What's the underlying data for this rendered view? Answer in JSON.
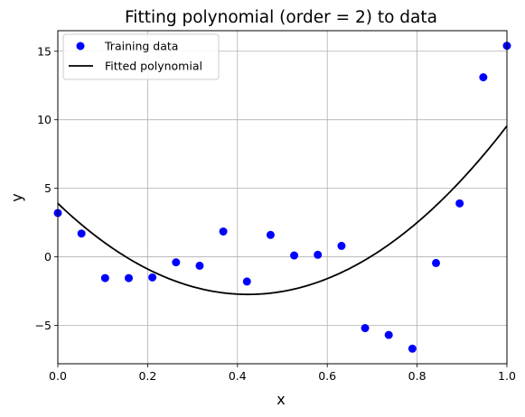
{
  "chart_data": {
    "type": "scatter",
    "title": "Fitting polynomial (order = 2) to data",
    "xlabel": "x",
    "ylabel": "y",
    "xlim": [
      0.0,
      1.0
    ],
    "ylim": [
      -7.8,
      16.5
    ],
    "grid": true,
    "legend_position": "top-left",
    "x_ticks": [
      {
        "value": 0.0,
        "label": "0.0"
      },
      {
        "value": 0.2,
        "label": "0.2"
      },
      {
        "value": 0.4,
        "label": "0.4"
      },
      {
        "value": 0.6,
        "label": "0.6"
      },
      {
        "value": 0.8,
        "label": "0.8"
      },
      {
        "value": 1.0,
        "label": "1.0"
      }
    ],
    "y_ticks": [
      {
        "value": -5,
        "label": "−5"
      },
      {
        "value": 0,
        "label": "0"
      },
      {
        "value": 5,
        "label": "5"
      },
      {
        "value": 10,
        "label": "10"
      },
      {
        "value": 15,
        "label": "15"
      }
    ],
    "series": [
      {
        "name": "Training data",
        "kind": "scatter",
        "color": "#0000ff",
        "x": [
          0.0,
          0.0526,
          0.1053,
          0.1579,
          0.2105,
          0.2632,
          0.3158,
          0.3684,
          0.4211,
          0.4737,
          0.5263,
          0.5789,
          0.6316,
          0.6842,
          0.7368,
          0.7895,
          0.8421,
          0.8947,
          0.9474,
          1.0
        ],
        "y": [
          3.2,
          1.7,
          -1.55,
          -1.55,
          -1.5,
          -0.4,
          -0.65,
          1.85,
          -1.8,
          1.6,
          0.1,
          0.15,
          0.8,
          -5.2,
          -5.7,
          -6.7,
          -0.45,
          3.9,
          13.1,
          15.4
        ]
      },
      {
        "name": "Fitted polynomial",
        "kind": "line",
        "color": "#000000",
        "polynomial_coefficients": [
          3.9,
          -31.35,
          37.0
        ]
      }
    ]
  }
}
